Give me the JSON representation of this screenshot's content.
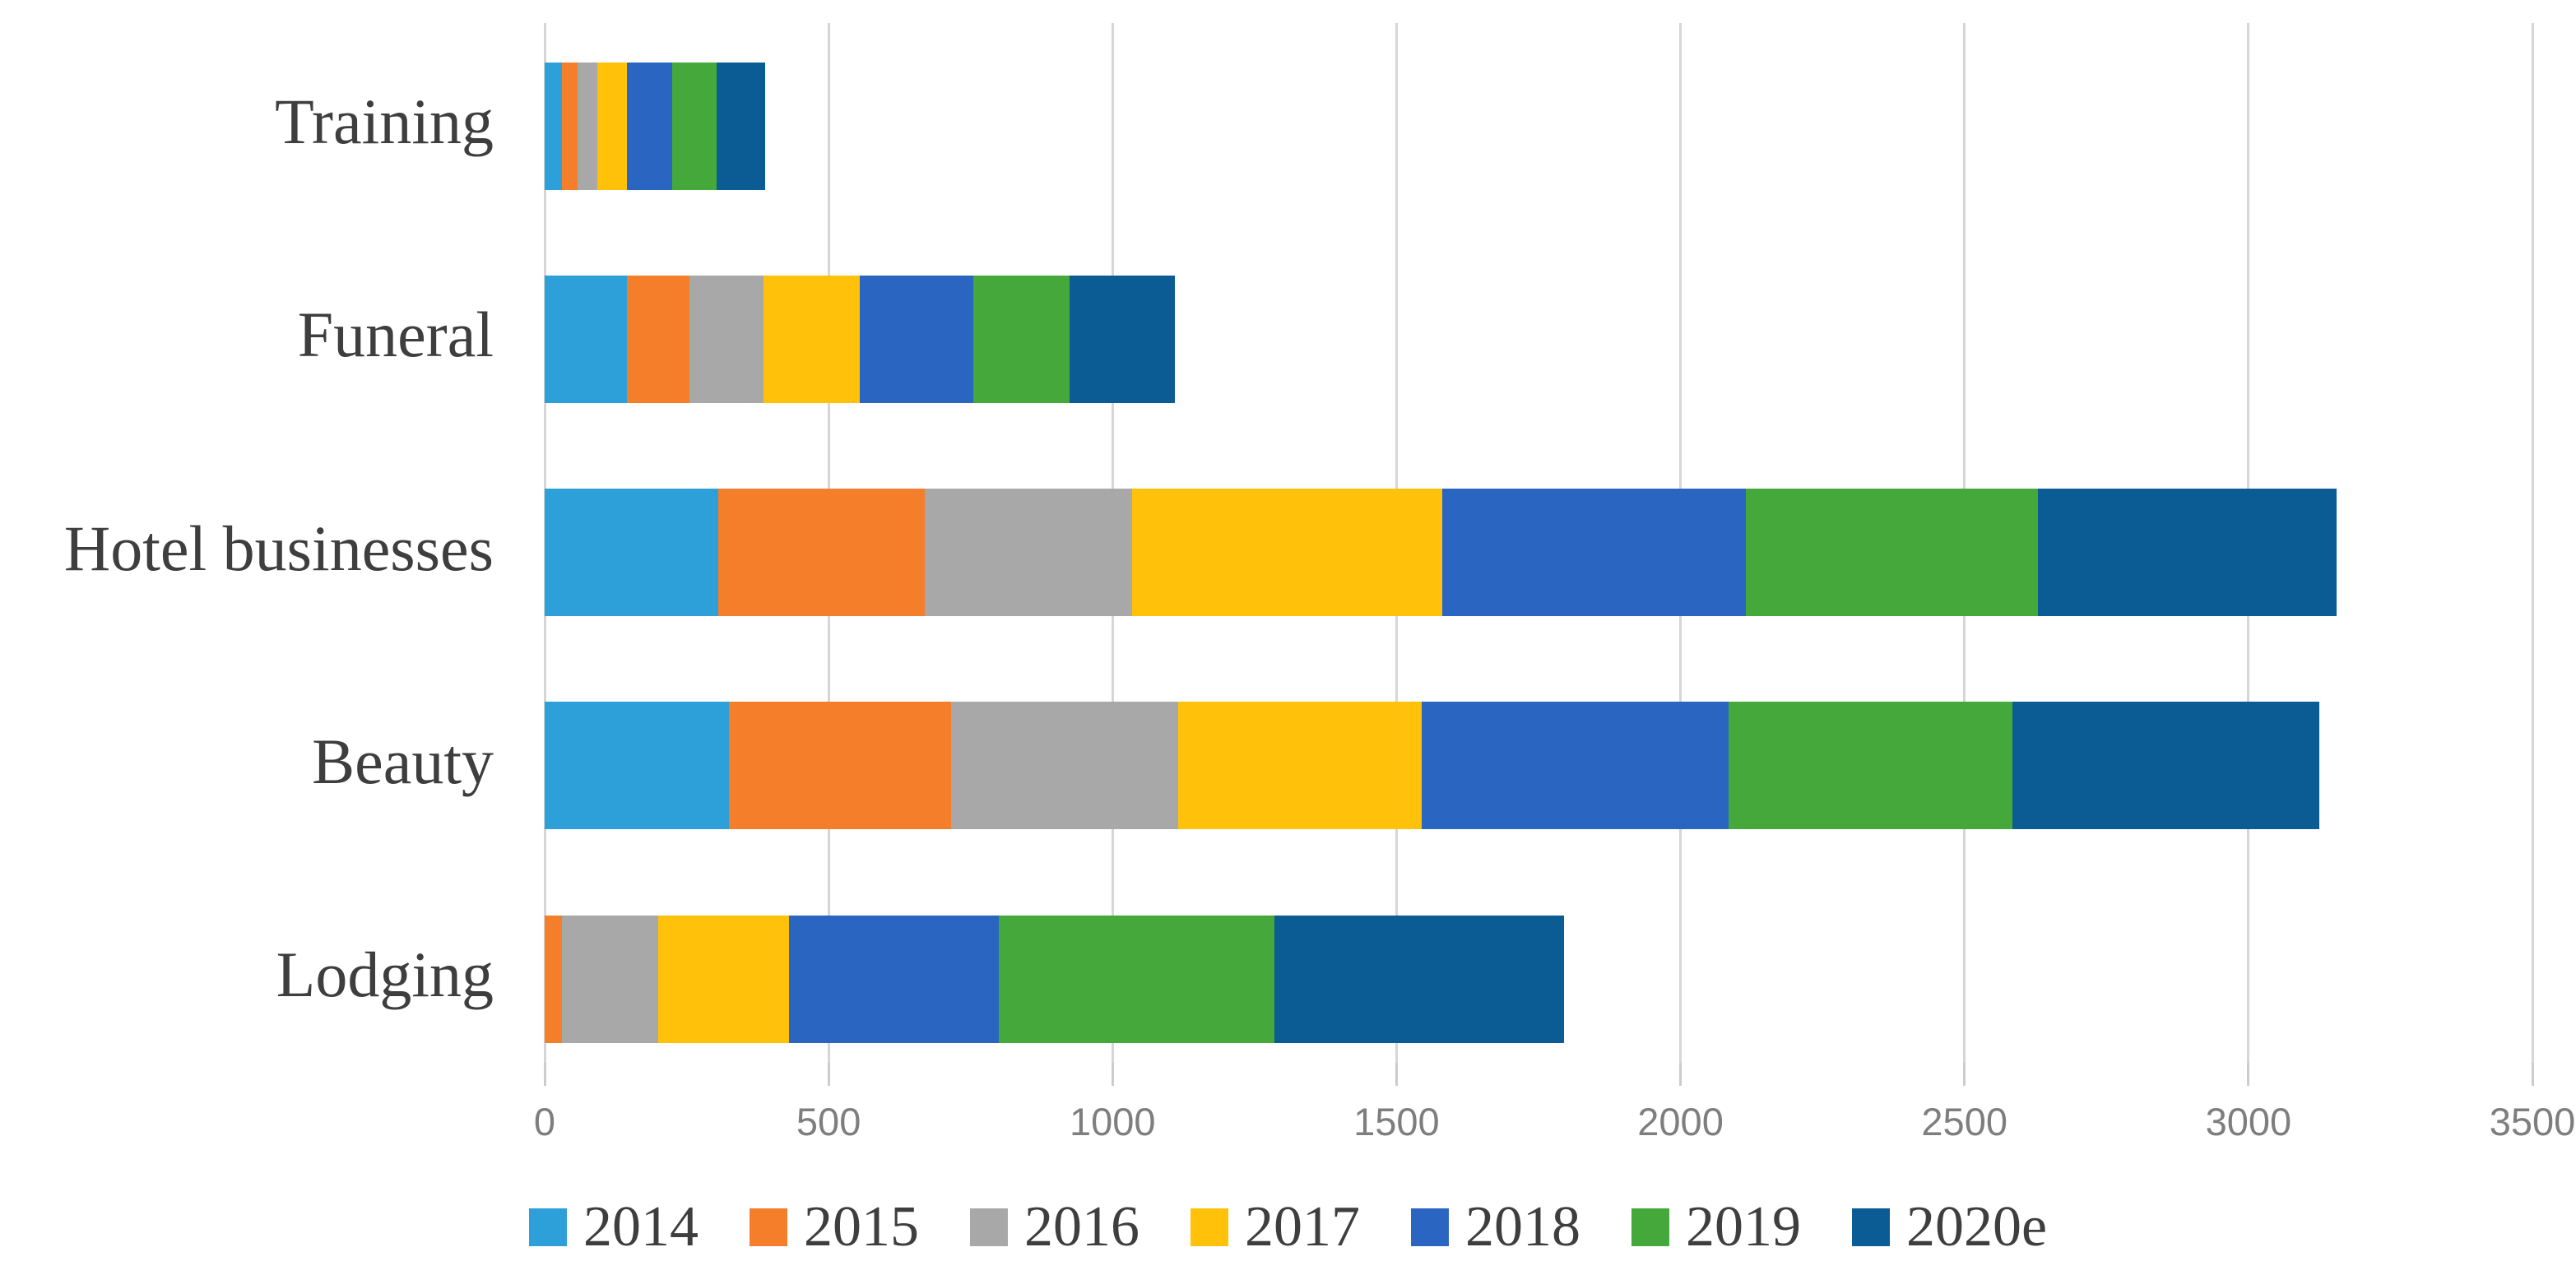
{
  "chart_data": {
    "type": "bar",
    "orientation": "horizontal",
    "stacked": true,
    "title": "",
    "xlabel": "",
    "ylabel": "",
    "categories": [
      "Training",
      "Funeral",
      "Hotel businesses",
      "Beauty",
      "Lodging"
    ],
    "series": [
      {
        "name": "2014",
        "color": "#2D9FD9",
        "values": [
          30,
          145,
          305,
          325,
          0
        ]
      },
      {
        "name": "2015",
        "color": "#F57E2B",
        "values": [
          28,
          110,
          365,
          390,
          30
        ]
      },
      {
        "name": "2016",
        "color": "#A8A8A8",
        "values": [
          35,
          130,
          365,
          400,
          170
        ]
      },
      {
        "name": "2017",
        "color": "#FFC10A",
        "values": [
          52,
          170,
          545,
          430,
          230
        ]
      },
      {
        "name": "2018",
        "color": "#2A65C2",
        "values": [
          80,
          200,
          535,
          540,
          370
        ]
      },
      {
        "name": "2019",
        "color": "#44A93A",
        "values": [
          78,
          170,
          515,
          500,
          485
        ]
      },
      {
        "name": "2020e",
        "color": "#0B5C94",
        "values": [
          85,
          185,
          525,
          540,
          510
        ]
      }
    ],
    "totals": [
      388,
      1110,
      3155,
      3125,
      1795
    ],
    "xlim": [
      0,
      3500
    ],
    "xticks": [
      0,
      500,
      1000,
      1500,
      2000,
      2500,
      3000,
      3500
    ],
    "grid": true,
    "legend_position": "bottom"
  }
}
